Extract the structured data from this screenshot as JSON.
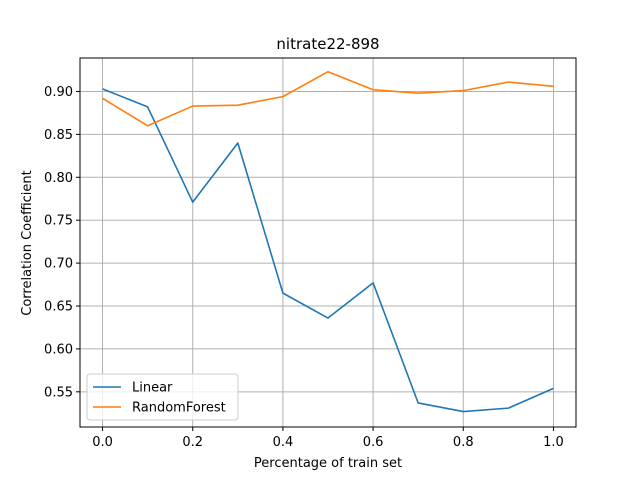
{
  "chart_data": {
    "type": "line",
    "title": "nitrate22-898",
    "xlabel": "Percentage of train set",
    "ylabel": "Correlation Coefficient",
    "x": [
      0.0,
      0.1,
      0.2,
      0.3,
      0.4,
      0.5,
      0.6,
      0.7,
      0.8,
      0.9,
      1.0
    ],
    "xlim": [
      -0.05,
      1.05
    ],
    "ylim": [
      0.509,
      0.939
    ],
    "xticks": [
      "0.0",
      "0.2",
      "0.4",
      "0.6",
      "0.8",
      "1.0"
    ],
    "yticks": [
      "0.55",
      "0.60",
      "0.65",
      "0.70",
      "0.75",
      "0.80",
      "0.85",
      "0.90"
    ],
    "grid": true,
    "legend_position": "lower-left",
    "series": [
      {
        "name": "Linear",
        "color": "#1f77b4",
        "values": [
          0.903,
          0.882,
          0.771,
          0.84,
          0.665,
          0.636,
          0.677,
          0.537,
          0.527,
          0.531,
          0.554
        ]
      },
      {
        "name": "RandomForest",
        "color": "#ff7f0e",
        "values": [
          0.892,
          0.86,
          0.883,
          0.884,
          0.894,
          0.923,
          0.902,
          0.898,
          0.901,
          0.911,
          0.906
        ]
      }
    ]
  }
}
